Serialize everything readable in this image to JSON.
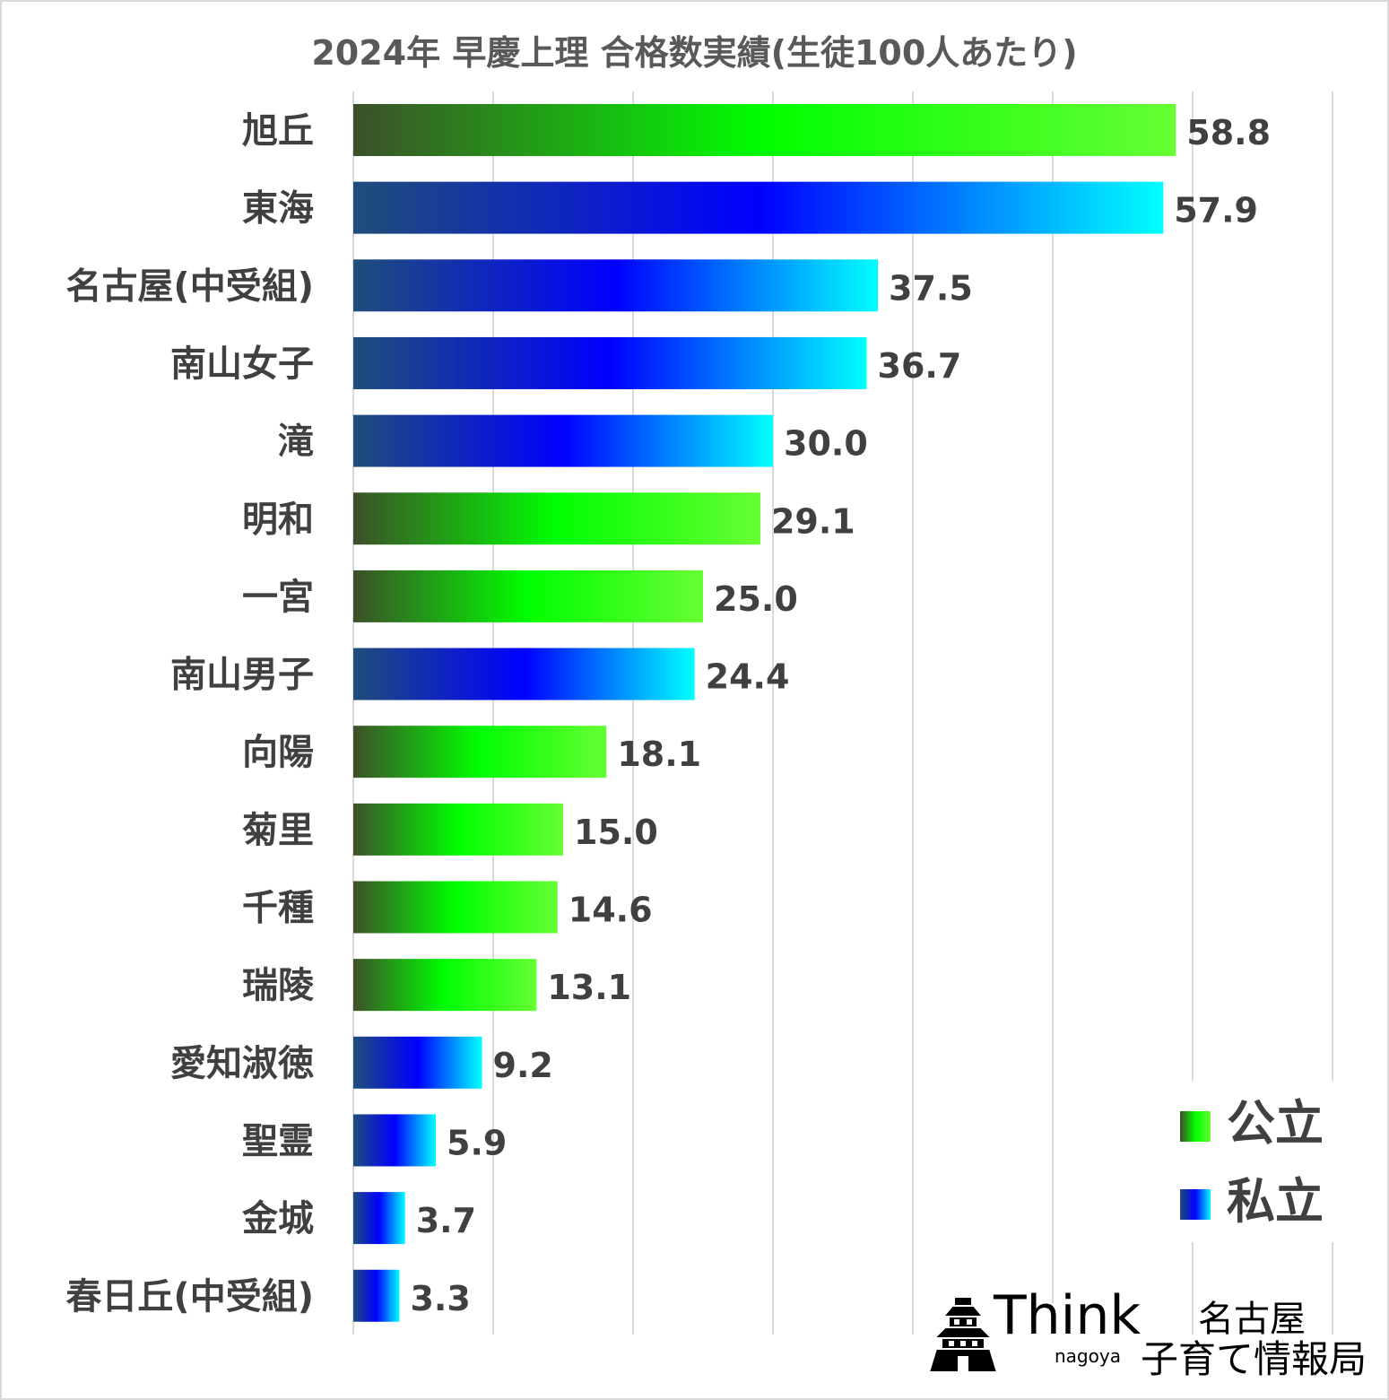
{
  "chart_data": {
    "type": "bar",
    "orientation": "horizontal",
    "title": "2024年 早慶上理 合格数実績(生徒100人あたり)",
    "xlim": [
      0,
      70
    ],
    "grid": "vertical",
    "legend_position": "bottom-right",
    "categories": [
      "旭丘",
      "東海",
      "名古屋(中受組)",
      "南山女子",
      "滝",
      "明和",
      "一宮",
      "南山男子",
      "向陽",
      "菊里",
      "千種",
      "瑞陵",
      "愛知淑徳",
      "聖霊",
      "金城",
      "春日丘(中受組)"
    ],
    "values": [
      58.8,
      57.9,
      37.5,
      36.7,
      30.0,
      29.1,
      25.0,
      24.4,
      18.1,
      15.0,
      14.6,
      13.1,
      9.2,
      5.9,
      3.7,
      3.3
    ],
    "value_labels": [
      "58.8",
      "57.9",
      "37.5",
      "36.7",
      "30.0",
      "29.1",
      "25.0",
      "24.4",
      "18.1",
      "15.0",
      "14.6",
      "13.1",
      "9.2",
      "5.9",
      "3.7",
      "3.3"
    ],
    "groups": [
      "public",
      "private",
      "private",
      "private",
      "private",
      "public",
      "public",
      "private",
      "public",
      "public",
      "public",
      "public",
      "private",
      "private",
      "private",
      "private"
    ],
    "series": [
      {
        "key": "public",
        "name": "公立",
        "gradient": [
          "#3d4f2a",
          "#00ff00",
          "#66ff33"
        ]
      },
      {
        "key": "private",
        "name": "私立",
        "gradient": [
          "#1f4e79",
          "#0000ff",
          "#00ffff"
        ]
      }
    ]
  },
  "logo": {
    "text": "Think",
    "sub": "nagoya",
    "name_line1": "名古屋",
    "name_line2": "子育て情報局"
  },
  "colors": {
    "label_text": "#404040",
    "title_text": "#595959",
    "gridline": "#d9d9d9"
  }
}
